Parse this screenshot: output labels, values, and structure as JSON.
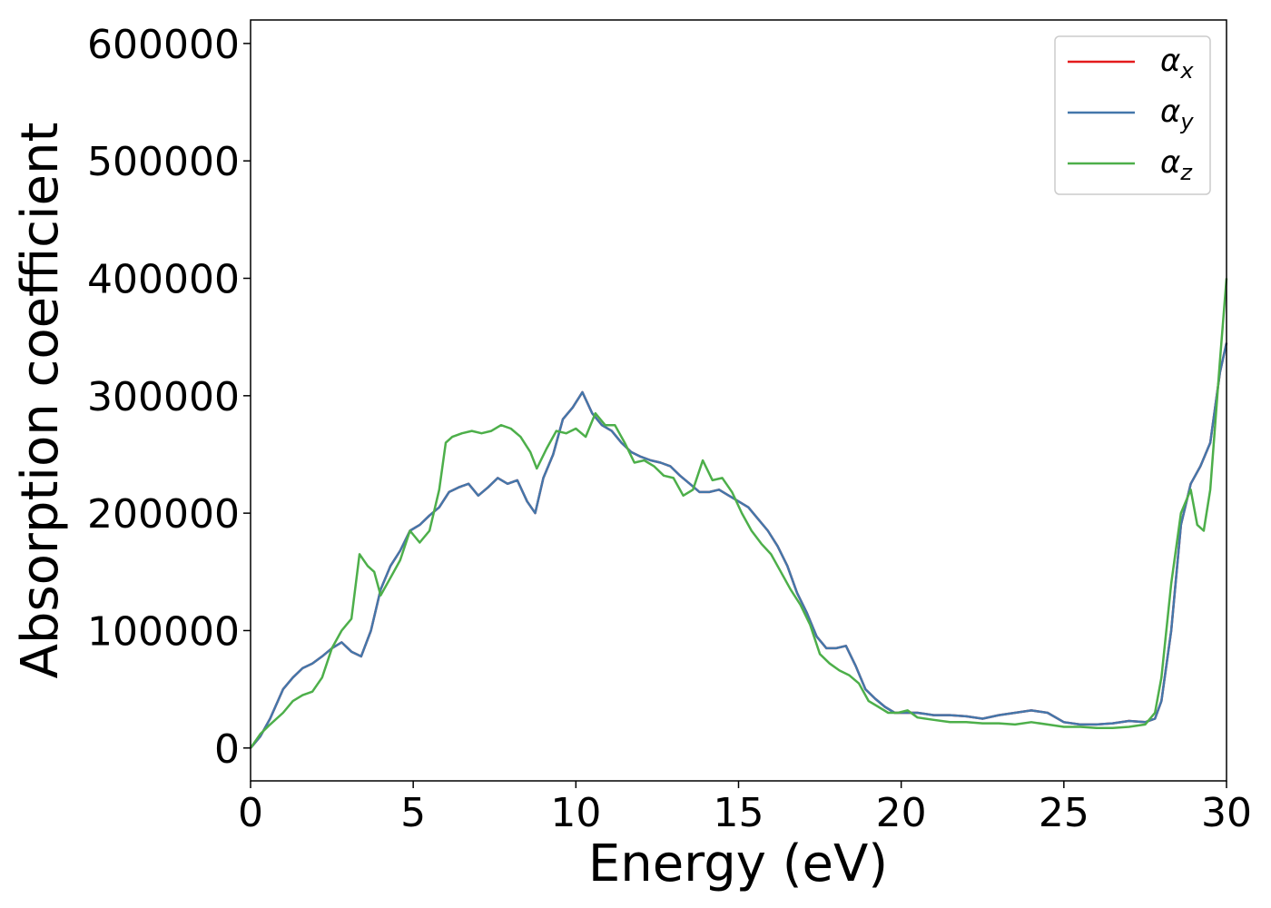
{
  "chart_data": {
    "type": "line",
    "title": "",
    "xlabel": "Energy (eV)",
    "ylabel": "Absorption coefficient",
    "xlim": [
      0,
      30
    ],
    "ylim": [
      -28000,
      620000
    ],
    "xticks": [
      0,
      5,
      10,
      15,
      20,
      25,
      30
    ],
    "yticks": [
      0,
      100000,
      200000,
      300000,
      400000,
      500000,
      600000
    ],
    "xtick_labels": [
      "0",
      "5",
      "10",
      "15",
      "20",
      "25",
      "30"
    ],
    "ytick_labels": [
      "0",
      "100000",
      "200000",
      "300000",
      "400000",
      "500000",
      "600000"
    ],
    "grid": false,
    "legend_position": "top-right",
    "series": [
      {
        "name": "α_x",
        "symbol": "α",
        "sub": "x",
        "color": "#e41a1c",
        "x": [
          0,
          0.3,
          0.6,
          1.0,
          1.3,
          1.6,
          1.9,
          2.2,
          2.5,
          2.8,
          3.1,
          3.4,
          3.7,
          4.0,
          4.3,
          4.6,
          4.9,
          5.2,
          5.5,
          5.8,
          6.1,
          6.4,
          6.7,
          7.0,
          7.3,
          7.6,
          7.9,
          8.2,
          8.5,
          8.75,
          9.0,
          9.3,
          9.6,
          9.9,
          10.2,
          10.5,
          10.8,
          11.1,
          11.4,
          11.7,
          12.0,
          12.3,
          12.6,
          12.9,
          13.2,
          13.5,
          13.8,
          14.1,
          14.4,
          14.7,
          15.0,
          15.3,
          15.6,
          15.9,
          16.2,
          16.5,
          16.8,
          17.1,
          17.4,
          17.7,
          18.0,
          18.3,
          18.6,
          18.9,
          19.2,
          19.5,
          19.8,
          20.1,
          20.5,
          21.0,
          21.5,
          22.0,
          22.5,
          23.0,
          23.5,
          24.0,
          24.5,
          25.0,
          25.5,
          26.0,
          26.5,
          27.0,
          27.5,
          27.8,
          28.0,
          28.3,
          28.6,
          28.9,
          29.2,
          29.5,
          29.8,
          30.0
        ],
        "values": [
          0,
          10000,
          25000,
          50000,
          60000,
          68000,
          72000,
          78000,
          85000,
          90000,
          82000,
          78000,
          100000,
          135000,
          155000,
          168000,
          185000,
          190000,
          198000,
          205000,
          218000,
          222000,
          225000,
          215000,
          222000,
          230000,
          225000,
          228000,
          210000,
          200000,
          230000,
          250000,
          280000,
          290000,
          303000,
          285000,
          275000,
          270000,
          260000,
          252000,
          248000,
          245000,
          243000,
          240000,
          232000,
          225000,
          218000,
          218000,
          220000,
          215000,
          210000,
          205000,
          195000,
          185000,
          172000,
          155000,
          132000,
          115000,
          95000,
          85000,
          85000,
          87000,
          70000,
          50000,
          42000,
          35000,
          30000,
          30000,
          30000,
          28000,
          28000,
          27000,
          25000,
          28000,
          30000,
          32000,
          30000,
          22000,
          20000,
          20000,
          21000,
          23000,
          22000,
          25000,
          40000,
          100000,
          190000,
          225000,
          240000,
          260000,
          320000,
          345000
        ]
      },
      {
        "name": "α_y",
        "symbol": "α",
        "sub": "y",
        "color": "#4477aa",
        "x": [
          0,
          0.3,
          0.6,
          1.0,
          1.3,
          1.6,
          1.9,
          2.2,
          2.5,
          2.8,
          3.1,
          3.4,
          3.7,
          4.0,
          4.3,
          4.6,
          4.9,
          5.2,
          5.5,
          5.8,
          6.1,
          6.4,
          6.7,
          7.0,
          7.3,
          7.6,
          7.9,
          8.2,
          8.5,
          8.75,
          9.0,
          9.3,
          9.6,
          9.9,
          10.2,
          10.5,
          10.8,
          11.1,
          11.4,
          11.7,
          12.0,
          12.3,
          12.6,
          12.9,
          13.2,
          13.5,
          13.8,
          14.1,
          14.4,
          14.7,
          15.0,
          15.3,
          15.6,
          15.9,
          16.2,
          16.5,
          16.8,
          17.1,
          17.4,
          17.7,
          18.0,
          18.3,
          18.6,
          18.9,
          19.2,
          19.5,
          19.8,
          20.1,
          20.5,
          21.0,
          21.5,
          22.0,
          22.5,
          23.0,
          23.5,
          24.0,
          24.5,
          25.0,
          25.5,
          26.0,
          26.5,
          27.0,
          27.5,
          27.8,
          28.0,
          28.3,
          28.6,
          28.9,
          29.2,
          29.5,
          29.8,
          30.0
        ],
        "values": [
          0,
          10000,
          25000,
          50000,
          60000,
          68000,
          72000,
          78000,
          85000,
          90000,
          82000,
          78000,
          100000,
          135000,
          155000,
          168000,
          185000,
          190000,
          198000,
          205000,
          218000,
          222000,
          225000,
          215000,
          222000,
          230000,
          225000,
          228000,
          210000,
          200000,
          230000,
          250000,
          280000,
          290000,
          303000,
          285000,
          275000,
          270000,
          260000,
          252000,
          248000,
          245000,
          243000,
          240000,
          232000,
          225000,
          218000,
          218000,
          220000,
          215000,
          210000,
          205000,
          195000,
          185000,
          172000,
          155000,
          132000,
          115000,
          95000,
          85000,
          85000,
          87000,
          70000,
          50000,
          42000,
          35000,
          30000,
          30000,
          30000,
          28000,
          28000,
          27000,
          25000,
          28000,
          30000,
          32000,
          30000,
          22000,
          20000,
          20000,
          21000,
          23000,
          22000,
          25000,
          40000,
          100000,
          190000,
          225000,
          240000,
          260000,
          320000,
          345000
        ]
      },
      {
        "name": "α_z",
        "symbol": "α",
        "sub": "z",
        "color": "#4daf4a",
        "x": [
          0,
          0.3,
          0.6,
          1.0,
          1.3,
          1.6,
          1.9,
          2.2,
          2.5,
          2.8,
          3.1,
          3.35,
          3.6,
          3.8,
          4.0,
          4.3,
          4.6,
          4.9,
          5.2,
          5.5,
          5.8,
          6.0,
          6.2,
          6.5,
          6.8,
          7.1,
          7.4,
          7.7,
          8.0,
          8.3,
          8.6,
          8.8,
          9.1,
          9.4,
          9.7,
          10.0,
          10.3,
          10.6,
          10.9,
          11.2,
          11.5,
          11.8,
          12.1,
          12.4,
          12.7,
          13.0,
          13.3,
          13.6,
          13.9,
          14.2,
          14.5,
          14.8,
          15.1,
          15.4,
          15.7,
          16.0,
          16.3,
          16.6,
          16.9,
          17.2,
          17.5,
          17.8,
          18.1,
          18.4,
          18.7,
          19.0,
          19.3,
          19.6,
          19.9,
          20.2,
          20.5,
          21.0,
          21.5,
          22.0,
          22.5,
          23.0,
          23.5,
          24.0,
          24.5,
          25.0,
          25.5,
          26.0,
          26.5,
          27.0,
          27.5,
          27.8,
          28.0,
          28.3,
          28.6,
          28.9,
          29.1,
          29.3,
          29.5,
          29.8,
          30.0
        ],
        "values": [
          0,
          12000,
          20000,
          30000,
          40000,
          45000,
          48000,
          60000,
          85000,
          100000,
          110000,
          165000,
          155000,
          150000,
          130000,
          145000,
          160000,
          185000,
          175000,
          185000,
          220000,
          260000,
          265000,
          268000,
          270000,
          268000,
          270000,
          275000,
          272000,
          265000,
          252000,
          238000,
          255000,
          270000,
          268000,
          272000,
          265000,
          285000,
          275000,
          275000,
          260000,
          243000,
          245000,
          240000,
          232000,
          230000,
          215000,
          220000,
          245000,
          228000,
          230000,
          218000,
          200000,
          185000,
          174000,
          165000,
          150000,
          135000,
          122000,
          105000,
          80000,
          72000,
          66000,
          62000,
          55000,
          40000,
          35000,
          30000,
          30000,
          32000,
          26000,
          24000,
          22000,
          22000,
          21000,
          21000,
          20000,
          22000,
          20000,
          18000,
          18000,
          17000,
          17000,
          18000,
          20000,
          30000,
          60000,
          140000,
          200000,
          220000,
          190000,
          185000,
          220000,
          330000,
          400000
        ]
      }
    ]
  }
}
